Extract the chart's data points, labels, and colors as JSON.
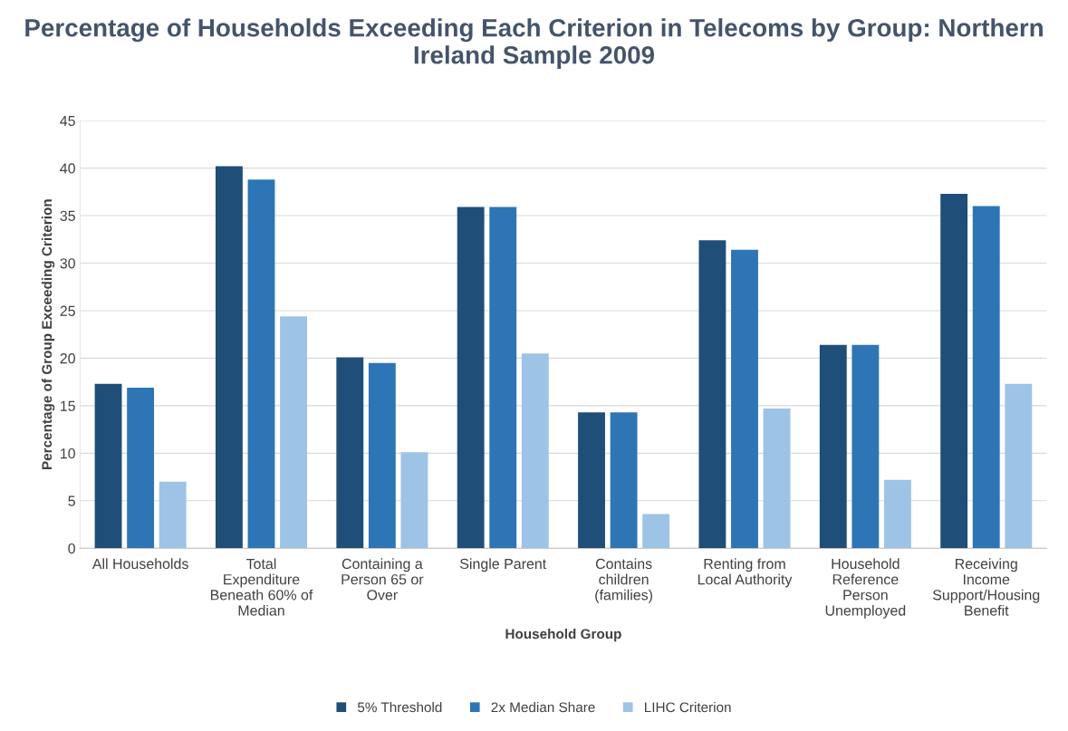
{
  "chart_data": {
    "type": "bar",
    "title": "Percentage of Households Exceeding Each Criterion in Telecoms by Group: Northern Ireland Sample 2009",
    "xlabel": "Household Group",
    "ylabel": "Percentage of Group Exceeding Criterion",
    "categories": [
      "All Households",
      "Total Expenditure Beneath 60% of Median",
      "Containing a Person 65 or Over",
      "Single Parent",
      "Contains children (families)",
      "Renting from Local Authority",
      "Household Reference Person Unemployed",
      "Receiving Income Support/Housing Benefit"
    ],
    "series": [
      {
        "name": "5% Threshold",
        "color": "#1f4e79",
        "values": [
          17.3,
          40.2,
          20.1,
          35.9,
          14.3,
          32.4,
          21.4,
          37.3
        ]
      },
      {
        "name": "2x Median Share",
        "color": "#2e75b6",
        "values": [
          16.9,
          38.8,
          19.5,
          35.9,
          14.3,
          31.4,
          21.4,
          36.0
        ]
      },
      {
        "name": "LIHC Criterion",
        "color": "#9dc3e6",
        "values": [
          7.0,
          24.4,
          10.1,
          20.5,
          3.6,
          14.7,
          7.2,
          17.3
        ]
      }
    ],
    "ylim": [
      0,
      45
    ],
    "yticks": [
      0,
      5,
      10,
      15,
      20,
      25,
      30,
      35,
      40,
      45
    ],
    "grid": "y",
    "legend": "bottom"
  }
}
